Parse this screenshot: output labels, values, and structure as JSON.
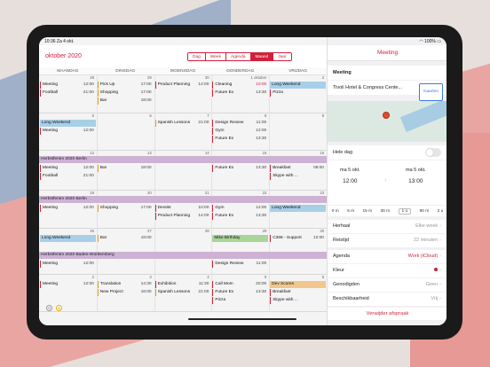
{
  "status": {
    "time": "10:36",
    "date": "Za 4 okt.",
    "battery": "100%"
  },
  "calendar": {
    "month": "oktober",
    "year": "2020",
    "view_tabs": [
      "Dag",
      "Week",
      "Agenda",
      "Maand",
      "Jaar"
    ],
    "active_tab": "Maand",
    "weekdays": [
      "MAANDAG",
      "DINSDAG",
      "WOENSDAG",
      "DONDERDAG",
      "VRIJDAG"
    ],
    "weeks": [
      {
        "nums": [
          "28",
          "29",
          "30",
          "1 oktober",
          "2"
        ],
        "events": [
          {
            "col": 0,
            "row": 0,
            "title": "Meeting",
            "time": "12:00",
            "style": "red"
          },
          {
            "col": 0,
            "row": 1,
            "title": "Football",
            "time": "21:00",
            "style": "red"
          },
          {
            "col": 1,
            "row": 0,
            "title": "Pick Up",
            "time": "17:00",
            "style": "orange"
          },
          {
            "col": 1,
            "row": 1,
            "title": "Shopping",
            "time": "17:00",
            "style": "orange"
          },
          {
            "col": 1,
            "row": 2,
            "title": "Bar",
            "time": "18:00",
            "style": "orange"
          },
          {
            "col": 2,
            "row": 0,
            "title": "Product Planning",
            "time": "14:00",
            "style": "red"
          },
          {
            "col": 3,
            "row": 0,
            "title": "Cleaning",
            "time": "10:00",
            "style": "red",
            "time_red": true
          },
          {
            "col": 3,
            "row": 1,
            "title": "Future Ex",
            "time": "13:30",
            "style": "red"
          },
          {
            "col": 4,
            "row": 0,
            "title": "Long Weekend",
            "time": "",
            "style": "blue"
          },
          {
            "col": 4,
            "row": 1,
            "title": "Pizza",
            "time": "",
            "style": "red"
          }
        ]
      },
      {
        "nums": [
          "5",
          "6",
          "7",
          "8",
          "9"
        ],
        "events": [
          {
            "col": 0,
            "row": 0,
            "title": "Long Weekend",
            "time": "",
            "style": "blue"
          },
          {
            "col": 0,
            "row": 1,
            "title": "Meeting",
            "time": "12:00",
            "style": "red"
          },
          {
            "col": 2,
            "row": 0,
            "title": "Spanish Lessons",
            "time": "21:00",
            "style": "orange"
          },
          {
            "col": 3,
            "row": 0,
            "title": "Design Review",
            "time": "11:00",
            "style": "red"
          },
          {
            "col": 3,
            "row": 1,
            "title": "Gym",
            "time": "12:00",
            "style": "red"
          },
          {
            "col": 3,
            "row": 2,
            "title": "Future Ex",
            "time": "13:30",
            "style": "red"
          }
        ]
      },
      {
        "nums": [
          "12",
          "13",
          "14",
          "15",
          "16"
        ],
        "span": "Herbstferien 2020 Berlin",
        "events": [
          {
            "col": 0,
            "row": 0,
            "title": "Meeting",
            "time": "12:00",
            "style": "red"
          },
          {
            "col": 0,
            "row": 1,
            "title": "Football",
            "time": "21:00",
            "style": "red"
          },
          {
            "col": 1,
            "row": 0,
            "title": "Bar",
            "time": "18:00",
            "style": "orange"
          },
          {
            "col": 3,
            "row": 0,
            "title": "Future Ex",
            "time": "13:30",
            "style": "red"
          },
          {
            "col": 4,
            "row": 0,
            "title": "Breakfast",
            "time": "08:00",
            "style": "red"
          },
          {
            "col": 4,
            "row": 1,
            "title": "Skype with ...",
            "time": "",
            "style": "red"
          }
        ]
      },
      {
        "nums": [
          "19",
          "20",
          "21",
          "22",
          "23"
        ],
        "span": "Herbstferien 2020 Berlin",
        "events": [
          {
            "col": 0,
            "row": 0,
            "title": "Meeting",
            "time": "12:00",
            "style": "red"
          },
          {
            "col": 1,
            "row": 0,
            "title": "Shopping",
            "time": "17:00",
            "style": "orange"
          },
          {
            "col": 2,
            "row": 0,
            "title": "Dentist",
            "time": "10:00",
            "style": "red"
          },
          {
            "col": 2,
            "row": 1,
            "title": "Product Planning",
            "time": "14:00",
            "style": "red"
          },
          {
            "col": 3,
            "row": 0,
            "title": "Gym",
            "time": "12:00",
            "style": "red"
          },
          {
            "col": 3,
            "row": 1,
            "title": "Future Ex",
            "time": "13:30",
            "style": "red"
          },
          {
            "col": 4,
            "row": 0,
            "title": "Long Weekend",
            "time": "",
            "style": "blue"
          }
        ]
      },
      {
        "nums": [
          "26",
          "27",
          "28",
          "29",
          "30"
        ],
        "events": [
          {
            "col": 0,
            "row": 0,
            "title": "Long Weekend",
            "time": "",
            "style": "blue"
          },
          {
            "col": 1,
            "row": 0,
            "title": "Bar",
            "time": "18:00",
            "style": "orange"
          },
          {
            "col": 3,
            "row": 0,
            "title": "Mike Birthday",
            "time": "",
            "style": "green"
          },
          {
            "col": 4,
            "row": 0,
            "title": "C366 - Support",
            "time": "12:00",
            "style": "red"
          }
        ],
        "span2": "Herbstferien 2020 Baden-Württemberg",
        "extra": [
          {
            "col": 0,
            "title": "Meeting",
            "time": "12:00",
            "style": "red"
          },
          {
            "col": 3,
            "title": "Design Review",
            "time": "11:00",
            "style": "red"
          }
        ]
      },
      {
        "nums": [
          "2",
          "3",
          "4",
          "5",
          "6"
        ],
        "events": [
          {
            "col": 0,
            "row": 0,
            "title": "Meeting",
            "time": "12:00",
            "style": "red"
          },
          {
            "col": 1,
            "row": 0,
            "title": "Translation",
            "time": "14:30",
            "style": "orange"
          },
          {
            "col": 1,
            "row": 1,
            "title": "New Project",
            "time": "16:00",
            "style": "orange"
          },
          {
            "col": 2,
            "row": 0,
            "title": "Exhibition",
            "time": "11:30",
            "style": "red"
          },
          {
            "col": 2,
            "row": 1,
            "title": "Spanish Lessons",
            "time": "21:00",
            "style": "orange"
          },
          {
            "col": 3,
            "row": 0,
            "title": "Call Mom",
            "time": "20:00",
            "style": "red"
          },
          {
            "col": 3,
            "row": 1,
            "title": "Future Ex",
            "time": "13:30",
            "style": "red"
          },
          {
            "col": 3,
            "row": 2,
            "title": "Pizza",
            "time": "",
            "style": "red"
          },
          {
            "col": 4,
            "row": 0,
            "title": "Dev Scores",
            "time": "",
            "style": "sand"
          },
          {
            "col": 4,
            "row": 1,
            "title": "Breakfast",
            "time": "",
            "style": "red"
          },
          {
            "col": 4,
            "row": 2,
            "title": "Skype with ...",
            "time": "",
            "style": "red"
          }
        ]
      }
    ]
  },
  "detail": {
    "header": "Meeting",
    "title": "Meeting",
    "location": "Tivoli Hotel & Congress Cente...",
    "maps_button": "Kaarten",
    "all_day_label": "Hele dag",
    "start_date": "ma 5 okt.",
    "start_time": "12:00",
    "end_date": "ma 5 okt.",
    "end_time": "13:00",
    "durations": [
      "0 m",
      "5 m",
      "15 m",
      "30 m",
      "1 u",
      "90 m",
      "2 u"
    ],
    "selected_duration": "1 u",
    "repeat_label": "Herhaal",
    "repeat_value": "Elke week",
    "travel_label": "Reistijd",
    "travel_value": "22 minuten",
    "calendar_label": "Agenda",
    "calendar_value": "Work (iCloud)",
    "color_label": "Kleur",
    "invitees_label": "Genodigden",
    "invitees_value": "Geen",
    "availability_label": "Beschikbaarheid",
    "availability_value": "Vrij",
    "delete_label": "Verwijder afspraak"
  }
}
